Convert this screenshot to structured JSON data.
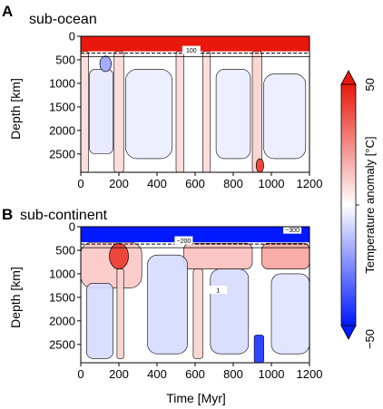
{
  "chart_data": [
    {
      "type": "heatmap",
      "panel_letter": "A",
      "title": "sub-ocean",
      "xlabel": "",
      "ylabel": "Depth [km]",
      "xlim": [
        0,
        1200
      ],
      "ylim": [
        0,
        2890
      ],
      "y_inverted": true,
      "x_ticks": [
        0,
        200,
        400,
        600,
        800,
        1000,
        1200
      ],
      "y_ticks": [
        0,
        500,
        1000,
        1500,
        2000,
        2500
      ],
      "contour_labels": [
        {
          "text": "100",
          "x": 580,
          "y": 300
        }
      ],
      "field": {
        "boundary_layer": {
          "depth_km": [
            0,
            320
          ],
          "anomaly_C": 50
        },
        "structures": [
          {
            "kind": "hot-column",
            "x_range": [
              0,
              40
            ],
            "anomaly_C": 8
          },
          {
            "kind": "hot-column",
            "x_range": [
              175,
              225
            ],
            "anomaly_C": 8
          },
          {
            "kind": "hot-column",
            "x_range": [
              500,
              540
            ],
            "anomaly_C": 8
          },
          {
            "kind": "hot-column",
            "x_range": [
              640,
              680
            ],
            "anomaly_C": 8
          },
          {
            "kind": "hot-column",
            "x_range": [
              900,
              950
            ],
            "anomaly_C": 10
          },
          {
            "kind": "cold-region",
            "x_range": [
              45,
              170
            ],
            "depth_range": [
              700,
              2500
            ],
            "anomaly_C": -5
          },
          {
            "kind": "cold-region",
            "x_range": [
              235,
              480
            ],
            "depth_range": [
              700,
              2600
            ],
            "anomaly_C": -4
          },
          {
            "kind": "cold-region",
            "x_range": [
              710,
              890
            ],
            "depth_range": [
              700,
              2600
            ],
            "anomaly_C": -4
          },
          {
            "kind": "cold-region",
            "x_range": [
              960,
              1180
            ],
            "depth_range": [
              800,
              2600
            ],
            "anomaly_C": -4
          },
          {
            "kind": "cold-blob",
            "x_range": [
              100,
              160
            ],
            "depth_range": [
              420,
              750
            ],
            "anomaly_C": -18
          },
          {
            "kind": "hot-blob",
            "x_range": [
              920,
              960
            ],
            "depth_range": [
              2600,
              2890
            ],
            "anomaly_C": 40
          }
        ]
      }
    },
    {
      "type": "heatmap",
      "panel_letter": "B",
      "title": "sub-continent",
      "xlabel": "Time [Myr]",
      "ylabel": "Depth [km]",
      "xlim": [
        0,
        1200
      ],
      "ylim": [
        0,
        2890
      ],
      "y_inverted": true,
      "x_ticks": [
        0,
        200,
        400,
        600,
        800,
        1000,
        1200
      ],
      "y_ticks": [
        0,
        500,
        1000,
        1500,
        2000,
        2500
      ],
      "contour_labels": [
        {
          "text": "−200",
          "x": 540,
          "y": 300
        },
        {
          "text": "−300",
          "x": 1110,
          "y": 70
        },
        {
          "text": "1",
          "x": 720,
          "y": 1350
        }
      ],
      "field": {
        "boundary_layer": {
          "depth_km": [
            0,
            330
          ],
          "anomaly_C": -50
        },
        "structures": [
          {
            "kind": "hot-region",
            "x_range": [
              0,
              320
            ],
            "depth_range": [
              330,
              1300
            ],
            "anomaly_C": 12
          },
          {
            "kind": "hot-blob",
            "x_range": [
              150,
              250
            ],
            "depth_range": [
              350,
              900
            ],
            "anomaly_C": 40
          },
          {
            "kind": "hot-region",
            "x_range": [
              540,
              900
            ],
            "depth_range": [
              350,
              900
            ],
            "anomaly_C": 14
          },
          {
            "kind": "hot-region",
            "x_range": [
              950,
              1200
            ],
            "depth_range": [
              350,
              900
            ],
            "anomaly_C": 20
          },
          {
            "kind": "cold-region",
            "x_range": [
              30,
              170
            ],
            "depth_range": [
              1200,
              2800
            ],
            "anomaly_C": -8
          },
          {
            "kind": "cold-region",
            "x_range": [
              350,
              560
            ],
            "depth_range": [
              600,
              2700
            ],
            "anomaly_C": -8
          },
          {
            "kind": "cold-region",
            "x_range": [
              680,
              880
            ],
            "depth_range": [
              900,
              2700
            ],
            "anomaly_C": -8
          },
          {
            "kind": "cold-region",
            "x_range": [
              1000,
              1200
            ],
            "depth_range": [
              1000,
              2700
            ],
            "anomaly_C": -6
          },
          {
            "kind": "cold-column",
            "x_range": [
              910,
              960
            ],
            "depth_range": [
              2300,
              2890
            ],
            "anomaly_C": -45
          },
          {
            "kind": "hot-column",
            "x_range": [
              190,
              225
            ],
            "depth_range": [
              900,
              2800
            ],
            "anomaly_C": 10
          },
          {
            "kind": "hot-column",
            "x_range": [
              590,
              640
            ],
            "depth_range": [
              900,
              2800
            ],
            "anomaly_C": 10
          }
        ]
      }
    }
  ],
  "colorbar": {
    "label": "Temperature anomaly [°C]",
    "min_label": "−50",
    "max_label": "50",
    "min": -50,
    "max": 50,
    "colors": {
      "cold": "#0019ff",
      "neutral": "#ffffff",
      "hot": "#e8190c"
    }
  }
}
